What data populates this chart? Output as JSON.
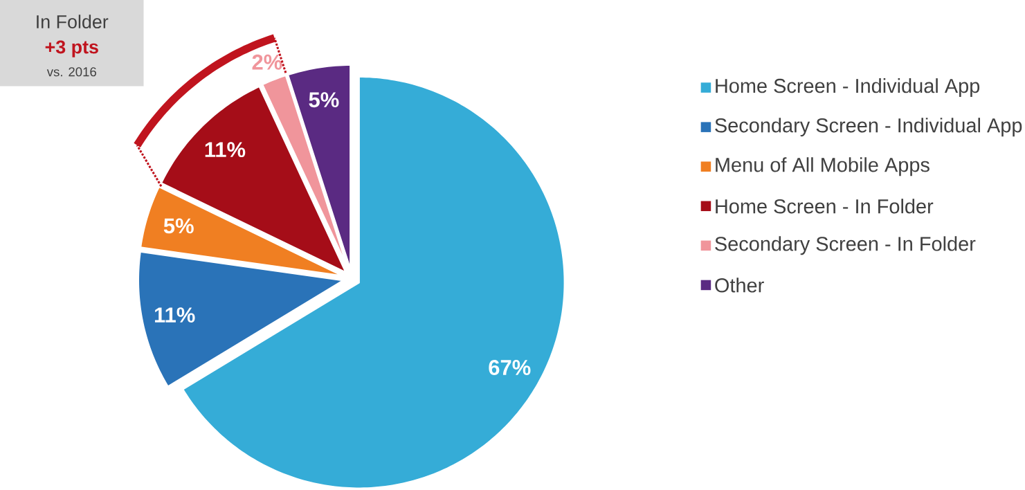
{
  "chart_data": {
    "type": "pie",
    "categories": [
      "Home Screen - Individual App",
      "Secondary Screen - Individual App",
      "Menu of All Mobile Apps",
      "Home Screen - In Folder",
      "Secondary Screen - In Folder",
      "Other"
    ],
    "values": [
      67,
      11,
      5,
      11,
      2,
      5
    ],
    "colors": [
      "#35acd7",
      "#2a73b8",
      "#f07f22",
      "#a50d18",
      "#f0959b",
      "#5a2a82"
    ],
    "value_labels": [
      "67%",
      "11%",
      "5%",
      "11%",
      "2%",
      "5%"
    ],
    "legend": "right",
    "annotations": [
      "In Folder",
      "+3 pts",
      "vs. 2016"
    ]
  }
}
